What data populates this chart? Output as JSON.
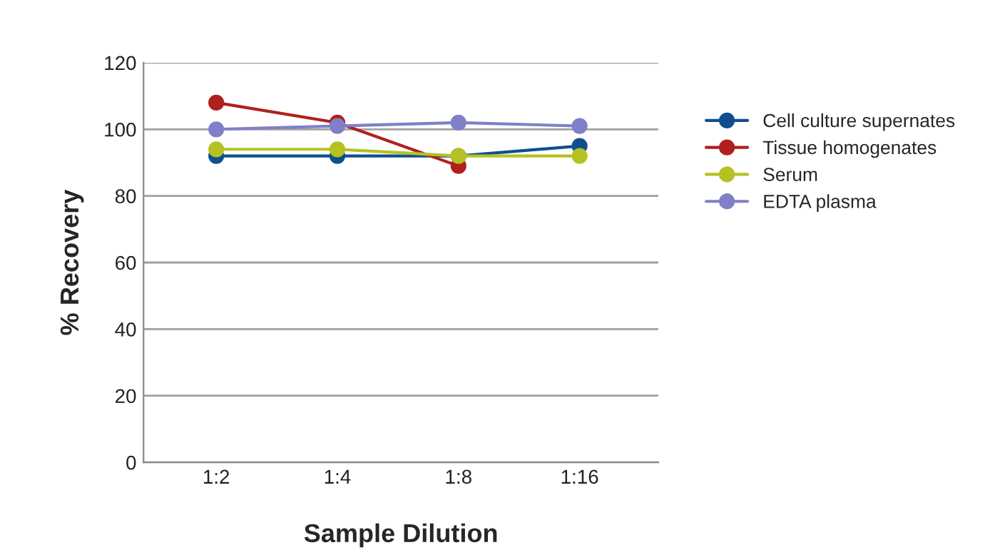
{
  "chart_data": {
    "type": "line",
    "xlabel": "Sample Dilution",
    "ylabel": "% Recovery",
    "categories": [
      "1:2",
      "1:4",
      "1:8",
      "1:16"
    ],
    "series": [
      {
        "name": "Cell culture supernates",
        "color": "#0f4f8f",
        "values": [
          92,
          92,
          92,
          95
        ]
      },
      {
        "name": "Tissue homogenates",
        "color": "#b0201c",
        "values": [
          108,
          102,
          89,
          null
        ]
      },
      {
        "name": "Serum",
        "color": "#b5c222",
        "values": [
          94,
          94,
          92,
          92
        ]
      },
      {
        "name": "EDTA plasma",
        "color": "#7f80c8",
        "values": [
          100,
          101,
          102,
          101
        ]
      }
    ],
    "ylim": [
      0,
      120
    ],
    "yticks": [
      0,
      20,
      40,
      60,
      80,
      100,
      120
    ],
    "grid": "y",
    "legend": "right",
    "marker": "circle",
    "line_style": "solid"
  }
}
